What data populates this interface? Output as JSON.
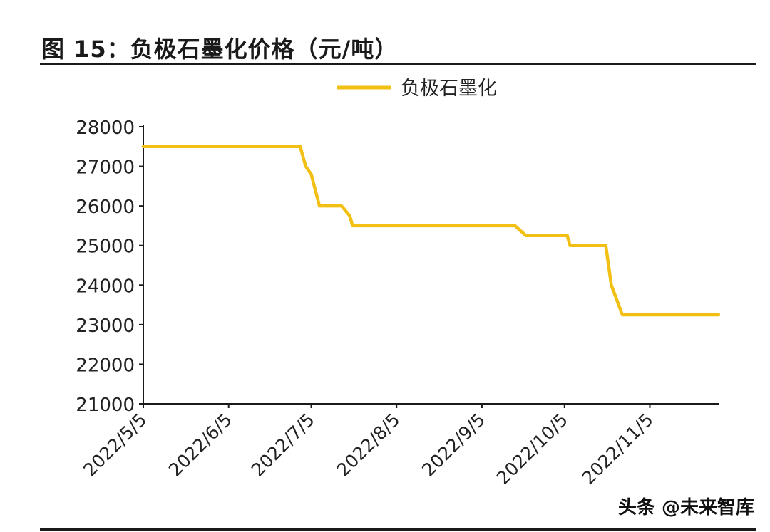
{
  "figure": {
    "title": "图 15：负极石墨化价格（元/吨）"
  },
  "watermark": "头条 @未来智库",
  "colors": {
    "series": "#f2c014",
    "axis": "#1a1a1a",
    "text": "#222222"
  },
  "chart_data": {
    "type": "line",
    "title": "",
    "xlabel": "",
    "ylabel": "",
    "ylim": [
      21000,
      28000
    ],
    "yticks": [
      21000,
      22000,
      23000,
      24000,
      25000,
      26000,
      27000,
      28000
    ],
    "xlim": [
      "2022-05-05",
      "2022-11-30"
    ],
    "xticks": [
      "2022/5/5",
      "2022/6/5",
      "2022/7/5",
      "2022/8/5",
      "2022/9/5",
      "2022/10/5",
      "2022/11/5"
    ],
    "grid": false,
    "legend": "top-center",
    "series": [
      {
        "name": "负极石墨化",
        "points": [
          [
            "2022-05-05",
            27500
          ],
          [
            "2022-07-01",
            27500
          ],
          [
            "2022-07-03",
            27000
          ],
          [
            "2022-07-05",
            26800
          ],
          [
            "2022-07-08",
            26000
          ],
          [
            "2022-07-16",
            26000
          ],
          [
            "2022-07-19",
            25750
          ],
          [
            "2022-07-20",
            25500
          ],
          [
            "2022-09-17",
            25500
          ],
          [
            "2022-09-21",
            25250
          ],
          [
            "2022-10-06",
            25250
          ],
          [
            "2022-10-07",
            25000
          ],
          [
            "2022-10-20",
            25000
          ],
          [
            "2022-10-22",
            24000
          ],
          [
            "2022-10-26",
            23250
          ],
          [
            "2022-11-30",
            23250
          ]
        ]
      }
    ]
  }
}
